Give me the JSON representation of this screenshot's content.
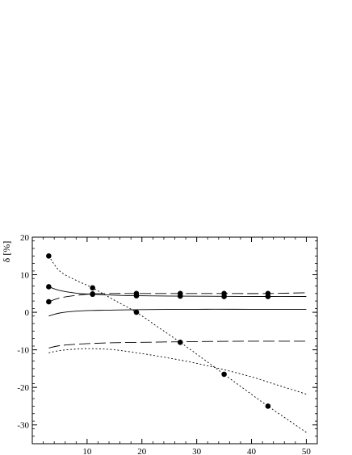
{
  "chart_data": {
    "type": "line",
    "title": "",
    "xlabel": "",
    "ylabel": "δ [%]",
    "xlim": [
      0,
      52
    ],
    "ylim": [
      -35,
      20
    ],
    "x_ticks": [
      10,
      20,
      30,
      40,
      50
    ],
    "y_ticks": [
      -30,
      -20,
      -10,
      0,
      10,
      20
    ],
    "grid": false,
    "series": [
      {
        "style": "dotted",
        "points": [
          [
            3,
            15
          ],
          [
            11,
            6.5
          ],
          [
            19,
            0
          ],
          [
            27,
            -8
          ],
          [
            35,
            -16.5
          ],
          [
            43,
            -25
          ]
        ],
        "curve": [
          [
            3,
            15
          ],
          [
            5,
            11
          ],
          [
            8,
            8.5
          ],
          [
            11,
            6.5
          ],
          [
            15,
            3.2
          ],
          [
            19,
            0
          ],
          [
            23,
            -4
          ],
          [
            27,
            -8
          ],
          [
            31,
            -12.2
          ],
          [
            35,
            -16.5
          ],
          [
            39,
            -20.8
          ],
          [
            43,
            -25
          ],
          [
            47,
            -29
          ],
          [
            50,
            -32
          ]
        ]
      },
      {
        "style": "solid",
        "points": [
          [
            3,
            6.8
          ],
          [
            11,
            4.8
          ],
          [
            19,
            4.4
          ],
          [
            27,
            4.3
          ],
          [
            35,
            4.2
          ],
          [
            43,
            4.2
          ]
        ],
        "curve": [
          [
            3,
            6.8
          ],
          [
            5,
            5.8
          ],
          [
            8,
            5.1
          ],
          [
            11,
            4.8
          ],
          [
            15,
            4.55
          ],
          [
            19,
            4.4
          ],
          [
            27,
            4.3
          ],
          [
            35,
            4.25
          ],
          [
            43,
            4.2
          ],
          [
            50,
            4.2
          ]
        ]
      },
      {
        "style": "dashed",
        "points": [
          [
            3,
            2.8
          ],
          [
            11,
            4.9
          ],
          [
            19,
            5
          ],
          [
            27,
            5
          ],
          [
            35,
            5
          ],
          [
            43,
            5
          ]
        ],
        "curve": [
          [
            3,
            2.8
          ],
          [
            5,
            3.8
          ],
          [
            8,
            4.5
          ],
          [
            11,
            4.9
          ],
          [
            15,
            5
          ],
          [
            19,
            5
          ],
          [
            27,
            5
          ],
          [
            35,
            5
          ],
          [
            43,
            5
          ],
          [
            50,
            5.2
          ]
        ]
      },
      {
        "style": "solid",
        "points": [],
        "curve": [
          [
            3,
            -1
          ],
          [
            5,
            -0.2
          ],
          [
            8,
            0.3
          ],
          [
            11,
            0.5
          ],
          [
            15,
            0.6
          ],
          [
            20,
            0.7
          ],
          [
            30,
            0.8
          ],
          [
            40,
            0.8
          ],
          [
            50,
            0.8
          ]
        ]
      },
      {
        "style": "dashed",
        "points": [],
        "curve": [
          [
            3,
            -9.5
          ],
          [
            5,
            -8.9
          ],
          [
            8,
            -8.5
          ],
          [
            11,
            -8.3
          ],
          [
            15,
            -8.1
          ],
          [
            20,
            -8
          ],
          [
            30,
            -7.8
          ],
          [
            40,
            -7.7
          ],
          [
            50,
            -7.7
          ]
        ]
      },
      {
        "style": "dotted",
        "points": [],
        "curve": [
          [
            3,
            -10.8
          ],
          [
            5,
            -10.2
          ],
          [
            8,
            -9.8
          ],
          [
            11,
            -9.7
          ],
          [
            15,
            -10
          ],
          [
            20,
            -11
          ],
          [
            25,
            -12.2
          ],
          [
            30,
            -13.6
          ],
          [
            35,
            -15.3
          ],
          [
            40,
            -17.2
          ],
          [
            45,
            -19.5
          ],
          [
            50,
            -21.8
          ]
        ]
      }
    ]
  }
}
